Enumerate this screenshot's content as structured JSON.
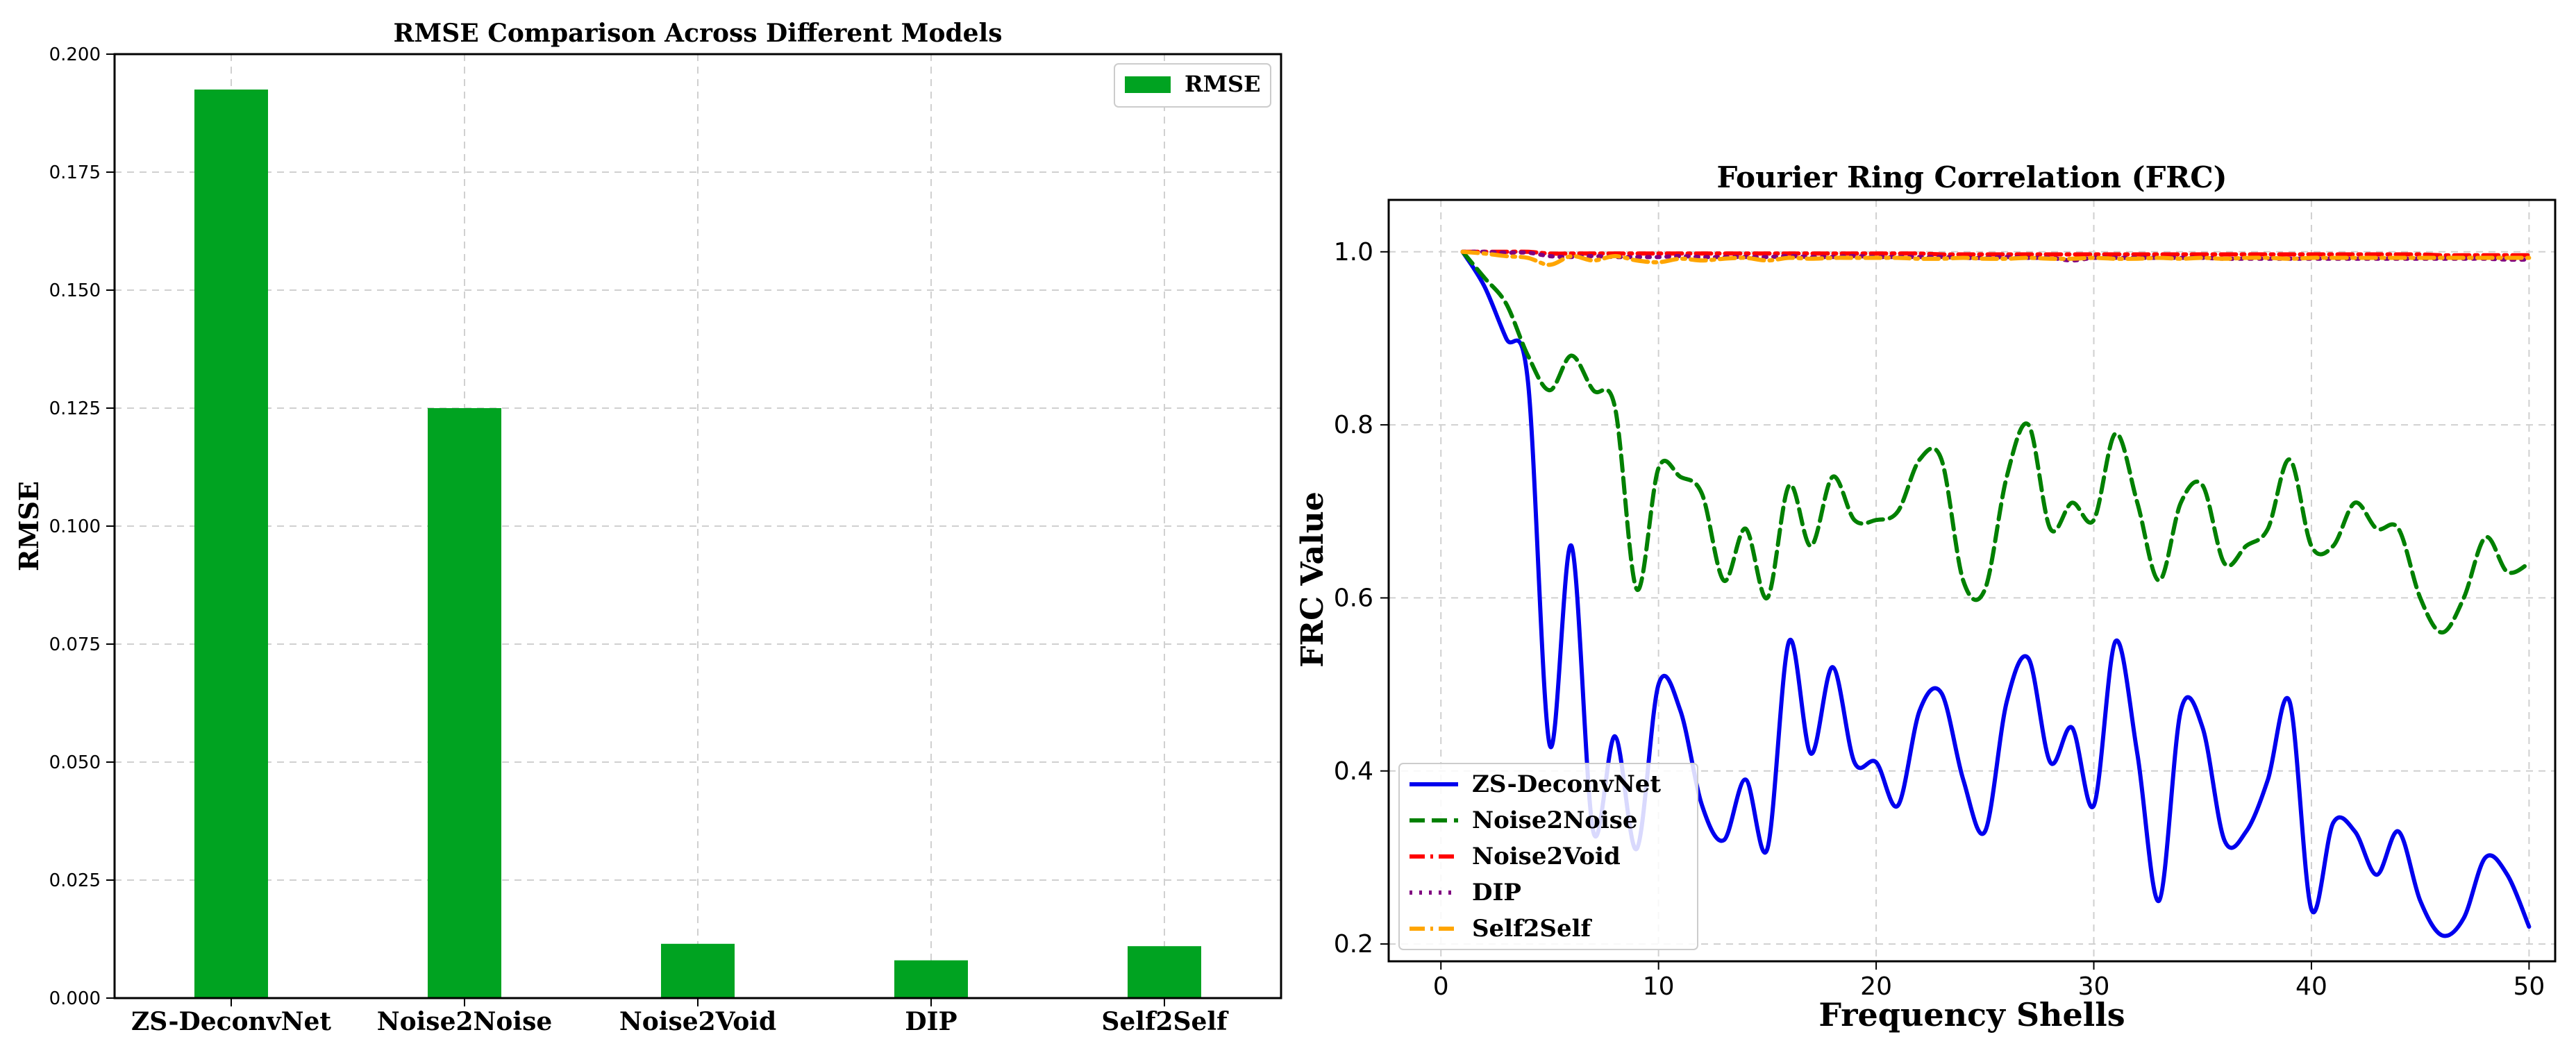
{
  "chart_data": [
    {
      "type": "bar",
      "title": "RMSE Comparison Across Different Models",
      "ylabel": "RMSE",
      "xlabel": "",
      "categories": [
        "ZS-DeconvNet",
        "Noise2Noise",
        "Noise2Void",
        "DIP",
        "Self2Self"
      ],
      "series": [
        {
          "name": "RMSE",
          "values": [
            0.1925,
            0.125,
            0.0115,
            0.008,
            0.011
          ]
        }
      ],
      "ylim": [
        0,
        0.2
      ],
      "yticks": [
        "0.000",
        "0.025",
        "0.050",
        "0.075",
        "0.100",
        "0.125",
        "0.150",
        "0.175",
        "0.200"
      ],
      "grid": true,
      "legend": "top-right",
      "colors": {
        "RMSE": "#00a321"
      }
    },
    {
      "type": "line",
      "title": "Fourier Ring Correlation (FRC)",
      "xlabel": "Frequency Shells",
      "ylabel": "FRC Value",
      "xlim": [
        0,
        50
      ],
      "ylim": [
        0.18,
        1.06
      ],
      "xticks": [
        "0",
        "10",
        "20",
        "30",
        "40",
        "50"
      ],
      "yticks": [
        "0.2",
        "0.4",
        "0.6",
        "0.8",
        "1.0"
      ],
      "grid": true,
      "legend": "bottom-left",
      "x": [
        1,
        2,
        3,
        4,
        5,
        6,
        7,
        8,
        9,
        10,
        11,
        12,
        13,
        14,
        15,
        16,
        17,
        18,
        19,
        20,
        21,
        22,
        23,
        24,
        25,
        26,
        27,
        28,
        29,
        30,
        31,
        32,
        33,
        34,
        35,
        36,
        37,
        38,
        39,
        40,
        41,
        42,
        43,
        44,
        45,
        46,
        47,
        48,
        49,
        50
      ],
      "series": [
        {
          "name": "ZS-DeconvNet",
          "color": "#0000ee",
          "dash": "solid",
          "values": [
            1.0,
            0.96,
            0.9,
            0.85,
            0.43,
            0.66,
            0.33,
            0.44,
            0.31,
            0.5,
            0.47,
            0.36,
            0.32,
            0.39,
            0.31,
            0.55,
            0.42,
            0.52,
            0.41,
            0.41,
            0.36,
            0.47,
            0.49,
            0.39,
            0.33,
            0.48,
            0.53,
            0.41,
            0.45,
            0.36,
            0.55,
            0.42,
            0.25,
            0.47,
            0.45,
            0.32,
            0.33,
            0.39,
            0.48,
            0.24,
            0.34,
            0.33,
            0.28,
            0.33,
            0.25,
            0.21,
            0.23,
            0.3,
            0.28,
            0.22
          ]
        },
        {
          "name": "Noise2Noise",
          "color": "#008000",
          "dash": "dashed",
          "values": [
            1.0,
            0.97,
            0.94,
            0.88,
            0.84,
            0.88,
            0.84,
            0.82,
            0.61,
            0.75,
            0.74,
            0.72,
            0.62,
            0.68,
            0.6,
            0.73,
            0.66,
            0.74,
            0.69,
            0.69,
            0.7,
            0.76,
            0.76,
            0.62,
            0.61,
            0.74,
            0.8,
            0.68,
            0.71,
            0.69,
            0.79,
            0.71,
            0.62,
            0.71,
            0.73,
            0.64,
            0.66,
            0.68,
            0.76,
            0.66,
            0.66,
            0.71,
            0.68,
            0.68,
            0.6,
            0.56,
            0.6,
            0.67,
            0.63,
            0.64
          ]
        },
        {
          "name": "Noise2Void",
          "color": "#ff0000",
          "dash": "dashdot",
          "values": [
            1.0,
            1.0,
            1.0,
            1.0,
            0.998,
            0.998,
            0.998,
            0.998,
            0.998,
            0.998,
            0.998,
            0.998,
            0.998,
            0.998,
            0.998,
            0.998,
            0.998,
            0.998,
            0.998,
            0.998,
            0.998,
            0.998,
            0.997,
            0.997,
            0.997,
            0.997,
            0.997,
            0.997,
            0.997,
            0.997,
            0.997,
            0.997,
            0.997,
            0.997,
            0.997,
            0.997,
            0.997,
            0.997,
            0.997,
            0.997,
            0.997,
            0.997,
            0.997,
            0.997,
            0.997,
            0.996,
            0.996,
            0.996,
            0.996,
            0.996
          ]
        },
        {
          "name": "DIP",
          "color": "#800080",
          "dash": "dotted",
          "values": [
            1.0,
            1.0,
            0.999,
            0.999,
            0.995,
            0.994,
            0.995,
            0.994,
            0.994,
            0.994,
            0.995,
            0.994,
            0.994,
            0.994,
            0.994,
            0.995,
            0.994,
            0.994,
            0.995,
            0.994,
            0.994,
            0.994,
            0.994,
            0.993,
            0.993,
            0.994,
            0.993,
            0.993,
            0.99,
            0.993,
            0.993,
            0.993,
            0.993,
            0.993,
            0.993,
            0.992,
            0.992,
            0.992,
            0.992,
            0.992,
            0.992,
            0.992,
            0.992,
            0.992,
            0.992,
            0.992,
            0.992,
            0.992,
            0.991,
            0.991
          ]
        },
        {
          "name": "Self2Self",
          "color": "#ffa500",
          "dash": "dashdot",
          "values": [
            1.0,
            0.998,
            0.995,
            0.993,
            0.985,
            0.995,
            0.99,
            0.995,
            0.99,
            0.988,
            0.992,
            0.99,
            0.992,
            0.993,
            0.99,
            0.993,
            0.992,
            0.993,
            0.993,
            0.993,
            0.993,
            0.992,
            0.992,
            0.993,
            0.992,
            0.992,
            0.993,
            0.992,
            0.992,
            0.993,
            0.992,
            0.992,
            0.993,
            0.992,
            0.993,
            0.992,
            0.993,
            0.993,
            0.992,
            0.993,
            0.993,
            0.993,
            0.993,
            0.993,
            0.993,
            0.993,
            0.993,
            0.993,
            0.993,
            0.993
          ]
        }
      ]
    }
  ]
}
